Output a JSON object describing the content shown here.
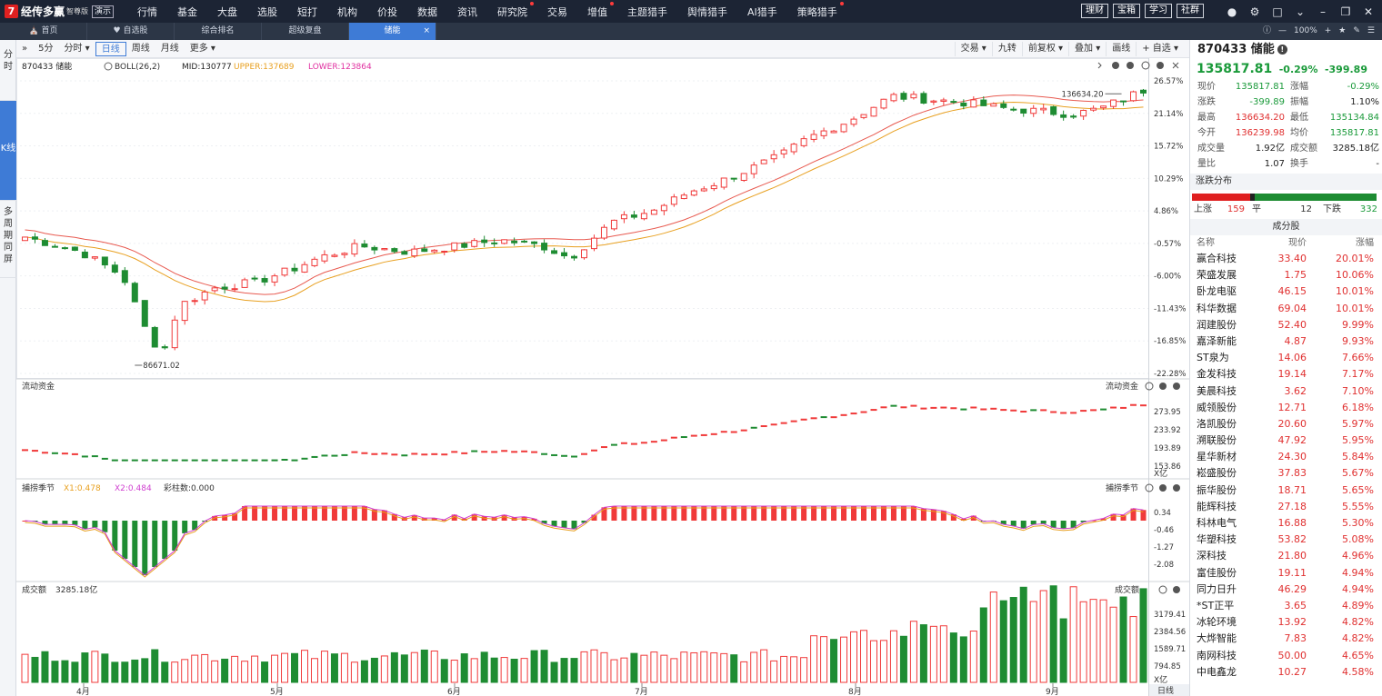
{
  "app": {
    "logo_mark": "7",
    "name": "经传多赢",
    "edition": "智尊版",
    "demo": "演示",
    "menu": [
      {
        "label": "行情",
        "dot": false
      },
      {
        "label": "基金",
        "dot": false
      },
      {
        "label": "大盘",
        "dot": false
      },
      {
        "label": "选股",
        "dot": false
      },
      {
        "label": "短打",
        "dot": false
      },
      {
        "label": "机构",
        "dot": false
      },
      {
        "label": "价投",
        "dot": false
      },
      {
        "label": "数据",
        "dot": false
      },
      {
        "label": "资讯",
        "dot": false
      },
      {
        "label": "研究院",
        "dot": true
      },
      {
        "label": "交易",
        "dot": false
      },
      {
        "label": "增值",
        "dot": true
      },
      {
        "label": "主题猎手",
        "dot": false
      },
      {
        "label": "舆情猎手",
        "dot": false
      },
      {
        "label": "AI猎手",
        "dot": false
      },
      {
        "label": "策略猎手",
        "dot": true
      }
    ],
    "quick_buttons": [
      "理财",
      "宝箱",
      "学习",
      "社群"
    ],
    "window_controls": [
      "user-icon",
      "gear-icon",
      "window-icon",
      "chevron-down-icon",
      "minimize-icon",
      "restore-icon",
      "close-icon"
    ]
  },
  "tabs": {
    "items": [
      {
        "label": "首页",
        "icon": "home-icon",
        "active": false
      },
      {
        "label": "自选股",
        "icon": "heart-icon",
        "active": false
      },
      {
        "label": "综合排名",
        "active": false
      },
      {
        "label": "超级复盘",
        "active": false
      },
      {
        "label": "储能",
        "active": true
      }
    ],
    "close": "×",
    "zoom": "100%",
    "zoom_minus": "—",
    "zoom_plus": "+"
  },
  "sidenav": [
    {
      "label": "分时",
      "active": false
    },
    {
      "label": "K线",
      "active": true
    },
    {
      "label": "多周期同屏",
      "active": false
    }
  ],
  "toolbar": {
    "collapse": "»",
    "left": [
      {
        "label": "5分",
        "active": false
      },
      {
        "label": "分时 ▾",
        "active": false
      },
      {
        "label": "日线",
        "active": true
      },
      {
        "label": "周线",
        "active": false
      },
      {
        "label": "月线",
        "active": false
      },
      {
        "label": "更多 ▾",
        "active": false
      }
    ],
    "right": [
      "交易 ▾",
      "九转",
      "前复权 ▾",
      "叠加 ▾",
      "画线",
      "+ 自选 ▾"
    ]
  },
  "colors": {
    "up": "#f03a3a",
    "down": "#1e8c32",
    "mid_line": "#e8a020",
    "upper_line": "#e85a50",
    "lower_line": "#f07a40",
    "x1_line": "#e8a020",
    "x2_line": "#d040d0",
    "accent": "#3e7bd6"
  },
  "main_chart": {
    "code_name": "870433 储能",
    "boll": "BOLL(26,2)",
    "mid": "MID:130777",
    "upper": "UPPER:137689",
    "lower": "LOWER:123864",
    "pct_ticks": [
      "26.57%",
      "21.14%",
      "15.72%",
      "10.29%",
      "4.86%",
      "-0.57%",
      "-6.00%",
      "-11.43%",
      "-16.85%",
      "-22.28%"
    ],
    "high_label": "136634.20",
    "low_label": "86671.02",
    "icons": [
      "refresh-icon",
      "add-icon",
      "remove-icon",
      "settings-icon",
      "help-icon",
      "close-icon"
    ]
  },
  "flow_chart": {
    "title": "流动资金",
    "title_right": "流动资金",
    "ticks": [
      "273.95",
      "233.92",
      "193.89",
      "153.86"
    ],
    "unit": "X亿"
  },
  "season_chart": {
    "title": "捕捞季节",
    "x1": "X1:0.478",
    "x2": "X2:0.484",
    "bars": "彩柱数:0.000",
    "title_right": "捕捞季节",
    "ticks": [
      "0.34",
      "-0.46",
      "-1.27",
      "-2.08"
    ]
  },
  "volume_chart": {
    "title": "成交额",
    "value": "3285.18亿",
    "title_right": "成交额",
    "ticks": [
      "3179.41",
      "2384.56",
      "1589.71",
      "794.85"
    ],
    "unit": "X亿"
  },
  "x_axis": {
    "months": [
      "4月",
      "5月",
      "6月",
      "7月",
      "8月",
      "9月"
    ],
    "period": "日线"
  },
  "quote": {
    "title": "870433 储能",
    "price": "135817.81",
    "change_pct": "-0.29%",
    "change": "-399.89",
    "rows": [
      {
        "l1": "现价",
        "v1": "135817.81",
        "c1": "green",
        "l2": "涨幅",
        "v2": "-0.29%",
        "c2": "green"
      },
      {
        "l1": "涨跌",
        "v1": "-399.89",
        "c1": "green",
        "l2": "振幅",
        "v2": "1.10%",
        "c2": "dark"
      },
      {
        "l1": "最高",
        "v1": "136634.20",
        "c1": "red",
        "l2": "最低",
        "v2": "135134.84",
        "c2": "green"
      },
      {
        "l1": "今开",
        "v1": "136239.98",
        "c1": "red",
        "l2": "均价",
        "v2": "135817.81",
        "c2": "green"
      },
      {
        "l1": "成交量",
        "v1": "1.92亿",
        "c1": "dark",
        "l2": "成交额",
        "v2": "3285.18亿",
        "c2": "dark"
      },
      {
        "l1": "量比",
        "v1": "1.07",
        "c1": "dark",
        "l2": "换手",
        "v2": "-",
        "c2": "dark"
      }
    ],
    "dist_title": "涨跌分布",
    "dist": {
      "up_label": "上涨",
      "up": 159,
      "flat_label": "平",
      "flat": 12,
      "down_label": "下跌",
      "down": 332
    },
    "constituents_title": "成分股",
    "headers": [
      "名称",
      "现价",
      "涨幅"
    ],
    "constituents": [
      {
        "name": "赢合科技",
        "price": "33.40",
        "pct": "20.01%"
      },
      {
        "name": "荣盛发展",
        "price": "1.75",
        "pct": "10.06%"
      },
      {
        "name": "卧龙电驱",
        "price": "46.15",
        "pct": "10.01%"
      },
      {
        "name": "科华数据",
        "price": "69.04",
        "pct": "10.01%"
      },
      {
        "name": "润建股份",
        "price": "52.40",
        "pct": "9.99%"
      },
      {
        "name": "嘉泽新能",
        "price": "4.87",
        "pct": "9.93%"
      },
      {
        "name": "ST泉为",
        "price": "14.06",
        "pct": "7.66%"
      },
      {
        "name": "金发科技",
        "price": "19.14",
        "pct": "7.17%"
      },
      {
        "name": "美晨科技",
        "price": "3.62",
        "pct": "7.10%"
      },
      {
        "name": "威领股份",
        "price": "12.71",
        "pct": "6.18%"
      },
      {
        "name": "洛凯股份",
        "price": "20.60",
        "pct": "5.97%"
      },
      {
        "name": "溯联股份",
        "price": "47.92",
        "pct": "5.95%"
      },
      {
        "name": "星华新材",
        "price": "24.30",
        "pct": "5.84%"
      },
      {
        "name": "崧盛股份",
        "price": "37.83",
        "pct": "5.67%"
      },
      {
        "name": "振华股份",
        "price": "18.71",
        "pct": "5.65%"
      },
      {
        "name": "能辉科技",
        "price": "27.18",
        "pct": "5.55%"
      },
      {
        "name": "科林电气",
        "price": "16.88",
        "pct": "5.30%"
      },
      {
        "name": "华塑科技",
        "price": "53.82",
        "pct": "5.08%"
      },
      {
        "name": "深科技",
        "price": "21.80",
        "pct": "4.96%"
      },
      {
        "name": "富佳股份",
        "price": "19.11",
        "pct": "4.94%"
      },
      {
        "name": "同力日升",
        "price": "46.29",
        "pct": "4.94%"
      },
      {
        "name": "*ST正平",
        "price": "3.65",
        "pct": "4.89%"
      },
      {
        "name": "冰轮环境",
        "price": "13.92",
        "pct": "4.82%"
      },
      {
        "name": "大烨智能",
        "price": "7.83",
        "pct": "4.82%"
      },
      {
        "name": "南网科技",
        "price": "50.00",
        "pct": "4.65%"
      },
      {
        "name": "中电鑫龙",
        "price": "10.27",
        "pct": "4.58%"
      }
    ]
  }
}
